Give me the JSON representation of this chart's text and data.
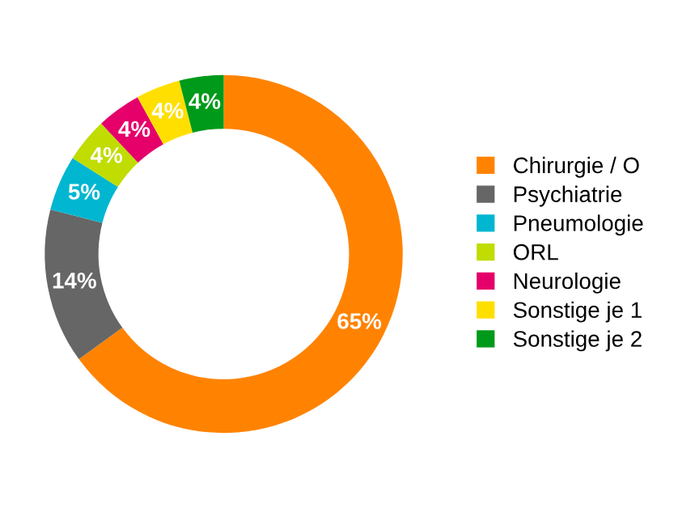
{
  "chart_data": {
    "type": "donut",
    "categories": [
      "Chirurgie / O",
      "Psychiatrie",
      "Pneumologie",
      "ORL",
      "Neurologie",
      "Sonstige je 1",
      "Sonstige je 2"
    ],
    "values": [
      65,
      14,
      5,
      4,
      4,
      4,
      4
    ],
    "value_labels": [
      "65%",
      "14%",
      "5%",
      "4%",
      "4%",
      "4%",
      "4%"
    ],
    "colors": [
      "#ff8300",
      "#666666",
      "#00b6d0",
      "#c0dc00",
      "#e5006a",
      "#ffdf00",
      "#009a1a"
    ],
    "legend": "right"
  }
}
